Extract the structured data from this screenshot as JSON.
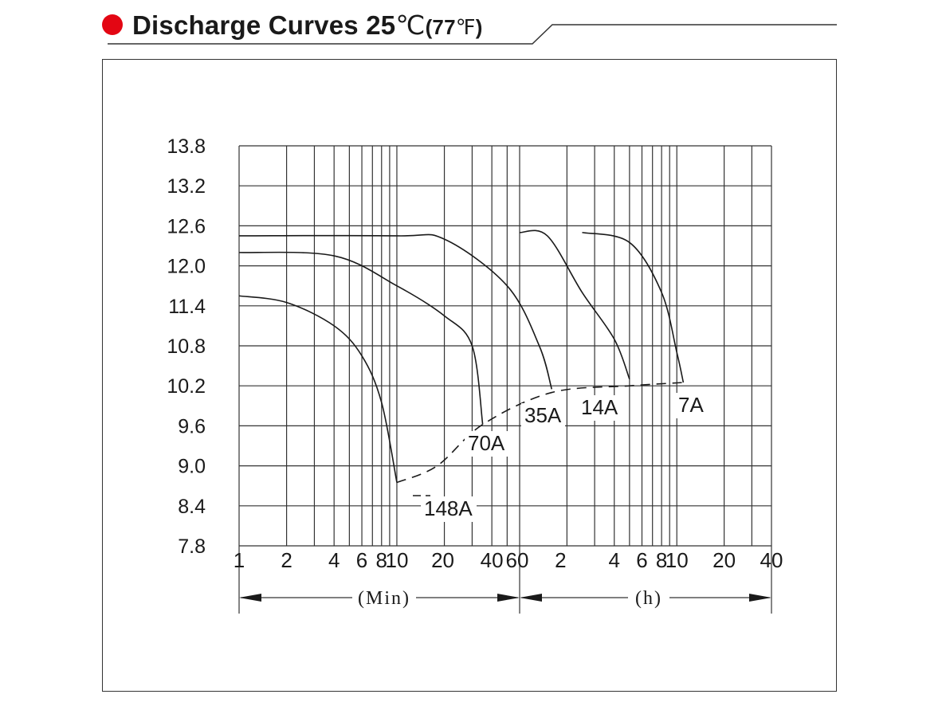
{
  "header": {
    "title_main": "Discharge Curves 25",
    "title_celsius": "℃",
    "title_paren_open": "(77",
    "title_fahrenheit": "℉",
    "title_paren_close": ")"
  },
  "colors": {
    "bullet": "#e30613",
    "line": "#1a1a1a",
    "grid": "#333333"
  },
  "chart_data": {
    "type": "line",
    "title": "Discharge Curves 25℃(77℉)",
    "xlabel_min": "(Min)",
    "xlabel_h": "(h)",
    "ylim": [
      7.8,
      13.8
    ],
    "x_scale": "log",
    "x_segments": [
      "minutes 1-60",
      "hours 1-40"
    ],
    "y_ticks": [
      "13.8",
      "13.2",
      "12.6",
      "12.0",
      "11.4",
      "10.8",
      "10.2",
      "9.6",
      "9.0",
      "8.4",
      "7.8"
    ],
    "x_tick_labels_min": [
      "1",
      "2",
      "4",
      "6",
      "8",
      "10",
      "20",
      "40",
      "60"
    ],
    "x_tick_labels_h": [
      "2",
      "4",
      "6",
      "8",
      "10",
      "20",
      "40"
    ],
    "grid": true,
    "series": [
      {
        "name": "148A",
        "points": [
          [
            1,
            11.55
          ],
          [
            2,
            11.45
          ],
          [
            4,
            11.1
          ],
          [
            6,
            10.65
          ],
          [
            8,
            9.95
          ],
          [
            10,
            8.75
          ]
        ]
      },
      {
        "name": "70A",
        "points": [
          [
            1,
            12.2
          ],
          [
            4,
            12.15
          ],
          [
            10,
            11.7
          ],
          [
            20,
            11.25
          ],
          [
            30,
            10.8
          ],
          [
            35,
            9.62
          ]
        ]
      },
      {
        "name": "35A",
        "points": [
          [
            1,
            12.45
          ],
          [
            10,
            12.45
          ],
          [
            20,
            12.4
          ],
          [
            50,
            11.7
          ],
          [
            80,
            10.8
          ],
          [
            96,
            10.15
          ]
        ]
      },
      {
        "name": "14A",
        "points": [
          [
            60,
            12.5
          ],
          [
            90,
            12.45
          ],
          [
            150,
            11.6
          ],
          [
            240,
            10.9
          ],
          [
            300,
            10.3
          ]
        ]
      },
      {
        "name": "7A",
        "points": [
          [
            150,
            12.5
          ],
          [
            300,
            12.35
          ],
          [
            480,
            11.6
          ],
          [
            600,
            10.7
          ],
          [
            660,
            10.25
          ]
        ]
      }
    ],
    "end_voltage_curve": [
      [
        10,
        8.75
      ],
      [
        18,
        9.0
      ],
      [
        35,
        9.62
      ],
      [
        96,
        10.1
      ],
      [
        300,
        10.2
      ],
      [
        660,
        10.25
      ]
    ]
  }
}
